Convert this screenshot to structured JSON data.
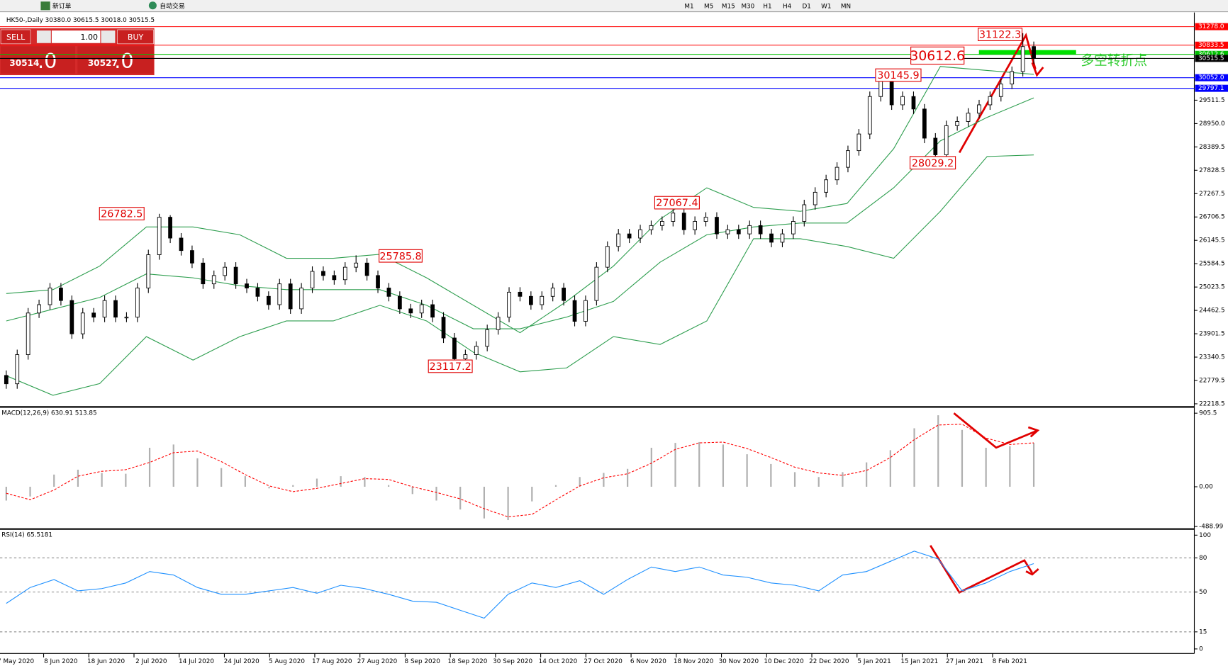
{
  "toolbar": {
    "new_order": "新订单",
    "auto_trade": "自动交易",
    "timeframes": [
      "M1",
      "M5",
      "M15",
      "M30",
      "H1",
      "H4",
      "D1",
      "W1",
      "MN"
    ]
  },
  "trade_panel": {
    "sell": "SELL",
    "lot": "1.00",
    "buy": "BUY",
    "bid": "30514",
    "bid_point": ".0",
    "ask": "30527",
    "ask_point": ".0"
  },
  "time_axis": [
    "7 May 2020",
    "8 Jun 2020",
    "18 Jun 2020",
    "2 Jul 2020",
    "14 Jul 2020",
    "24 Jul 2020",
    "5 Aug 2020",
    "17 Aug 2020",
    "27 Aug 2020",
    "8 Sep 2020",
    "18 Sep 2020",
    "30 Sep 2020",
    "14 Oct 2020",
    "27 Oct 2020",
    "6 Nov 2020",
    "18 Nov 2020",
    "30 Nov 2020",
    "10 Dec 2020",
    "22 Dec 2020",
    "5 Jan 2021",
    "15 Jan 2021",
    "27 Jan 2021",
    "8 Feb 2021"
  ],
  "note": "多空转折点",
  "chart_data": [
    {
      "type": "candlestick",
      "title": "HK50-,Daily 30380.0 30615.5 30018.0 30515.5",
      "open": [
        22900,
        22700,
        23400,
        24400,
        24600,
        25000,
        24700,
        23900,
        24400,
        24300,
        24700,
        24300,
        24300,
        25000,
        25800,
        26700,
        26200,
        25900,
        25600,
        25100,
        25300,
        25500,
        25100,
        25000,
        24800,
        24600,
        25100,
        24500,
        25000,
        25400,
        25300,
        25200,
        25500,
        25600,
        25300,
        25000,
        24800,
        24500,
        24400,
        24600,
        24300,
        23800,
        23300,
        23400,
        23600,
        24000,
        24300,
        24900,
        24800,
        24600,
        24800,
        25000,
        24700,
        24200,
        24700,
        25500,
        26000,
        26300,
        26200,
        26400,
        26500,
        26600,
        26800,
        26400,
        26600,
        26700,
        26300,
        26400,
        26300,
        26500,
        26300,
        26100,
        26300,
        26600,
        27000,
        27300,
        27600,
        27900,
        28300,
        28700,
        29600,
        30000,
        29400,
        29600,
        29300,
        28600,
        28200,
        28900,
        29000,
        29200,
        29400,
        29600,
        29900,
        30200,
        30800
      ],
      "high": [
        23020,
        23520,
        24520,
        24720,
        25120,
        25120,
        24820,
        24520,
        24520,
        24820,
        24820,
        24420,
        25120,
        25920,
        26782.5,
        26750,
        26320,
        26020,
        25720,
        25420,
        25620,
        25620,
        25220,
        25120,
        24920,
        25220,
        25220,
        25120,
        25520,
        25520,
        25420,
        25620,
        25785.8,
        25720,
        25420,
        25120,
        24920,
        24620,
        24720,
        24720,
        24420,
        23920,
        23520,
        23720,
        24120,
        24420,
        25020,
        25020,
        24920,
        24920,
        25120,
        25120,
        24820,
        24820,
        25620,
        26120,
        26420,
        26420,
        26520,
        26620,
        26720,
        27067.4,
        26920,
        26720,
        26820,
        26820,
        26520,
        26520,
        26620,
        26620,
        26420,
        26420,
        26720,
        27120,
        27420,
        27720,
        28020,
        28420,
        28820,
        29720,
        30145.9,
        30120,
        29720,
        29720,
        29420,
        28720,
        29020,
        29120,
        29320,
        29520,
        29720,
        30020,
        30320,
        31122.3,
        30920
      ],
      "low": [
        22580,
        22580,
        23280,
        24280,
        24480,
        24580,
        23780,
        23780,
        24180,
        24180,
        24180,
        24180,
        24180,
        24880,
        25680,
        26080,
        25780,
        25480,
        24980,
        24980,
        25180,
        24980,
        24880,
        24680,
        24480,
        24480,
        24380,
        24380,
        24880,
        25180,
        25080,
        25080,
        25380,
        25180,
        24880,
        24680,
        24380,
        24280,
        24280,
        24180,
        23680,
        23117.2,
        23180,
        23280,
        23480,
        23880,
        24180,
        24680,
        24480,
        24480,
        24680,
        24580,
        24080,
        24080,
        24580,
        25380,
        25880,
        26080,
        26080,
        26280,
        26380,
        26480,
        26280,
        26280,
        26480,
        26180,
        26180,
        26180,
        26180,
        26180,
        25980,
        25980,
        26180,
        26480,
        26880,
        27180,
        27480,
        27780,
        28180,
        28580,
        29480,
        29280,
        29280,
        29180,
        28480,
        28029.2,
        28080,
        28780,
        28880,
        29080,
        29280,
        29480,
        29780,
        30080,
        30380
      ],
      "close": [
        22700,
        23400,
        24400,
        24600,
        25000,
        24700,
        23900,
        24400,
        24300,
        24700,
        24300,
        24300,
        25000,
        25800,
        26700,
        26200,
        25900,
        25600,
        25100,
        25300,
        25500,
        25100,
        25000,
        24800,
        24600,
        25100,
        24500,
        25000,
        25400,
        25300,
        25200,
        25500,
        25600,
        25300,
        25000,
        24800,
        24500,
        24400,
        24600,
        24300,
        23800,
        23300,
        23400,
        23600,
        24000,
        24300,
        24900,
        24800,
        24600,
        24800,
        25000,
        24700,
        24200,
        24700,
        25500,
        26000,
        26300,
        26200,
        26400,
        26500,
        26600,
        26800,
        26400,
        26600,
        26700,
        26300,
        26400,
        26300,
        26500,
        26300,
        26100,
        26300,
        26600,
        27000,
        27300,
        27600,
        27900,
        28300,
        28700,
        29600,
        30000,
        29400,
        29600,
        29300,
        28600,
        28200,
        28900,
        29000,
        29200,
        29400,
        29600,
        29900,
        30200,
        30800,
        30515.5
      ],
      "bands": {
        "color": "#2e9e4f",
        "upper": [
          24868,
          24962,
          25526,
          26466,
          26466,
          26278,
          25714,
          25714,
          25808,
          25244,
          24586,
          23928,
          24680,
          25526,
          26654,
          27406,
          26936,
          26842,
          27030,
          28346,
          30320,
          30226,
          30132
        ],
        "middle": [
          24210,
          24492,
          24774,
          25338,
          25244,
          25056,
          24962,
          24962,
          24962,
          24586,
          24022,
          24022,
          24304,
          24680,
          25620,
          26278,
          26466,
          26560,
          26560,
          27406,
          28534,
          29098,
          29568
        ],
        "lower": [
          22894,
          22424,
          22706,
          23834,
          23270,
          23834,
          24210,
          24210,
          24586,
          24210,
          23458,
          22988,
          23082,
          23834,
          23646,
          24210,
          26184,
          26184,
          25996,
          25714,
          26842,
          28158,
          28196
        ]
      },
      "ylim": [
        22162,
        31580
      ],
      "yticks": [
        29511.5,
        {
          "value": 28950.0,
          "label": "28950.0"
        },
        28389.5,
        27828.5,
        27267.5,
        26706.5,
        26145.5,
        25584.5,
        25023.5,
        24462.5,
        23901.5,
        23340.5,
        22779.5,
        22218.5
      ],
      "price_lines": [
        {
          "value": 31278.0,
          "label": "31278.0",
          "color": "#ff0000"
        },
        {
          "value": 30833.5,
          "label": "30833.5",
          "color": "#ff0000"
        },
        {
          "value": 30612.6,
          "label": "30612.6",
          "color": "#00c000"
        },
        {
          "value": 30515.5,
          "label": "30515.5",
          "color": "#000000"
        },
        {
          "value": 30052.0,
          "label": "30052.0",
          "color": "#0000ff"
        },
        {
          "value": 29797.1,
          "label": "29797.1",
          "color": "#0000ff"
        }
      ],
      "annotations": [
        "31122.3",
        "30612.6",
        "30145.9",
        "28029.2",
        "27067.4",
        "26782.5",
        "25785.8",
        "23117.2"
      ]
    },
    {
      "type": "macd",
      "title": "MACD(12,26,9) 630.91 513.85",
      "color": "#b0b0b0",
      "signal_color": "#ff0000",
      "histogram": [
        -170,
        -120,
        150,
        210,
        170,
        160,
        480,
        520,
        350,
        230,
        130,
        -20,
        20,
        100,
        130,
        120,
        20,
        -90,
        -170,
        -280,
        -390,
        -410,
        -180,
        20,
        120,
        170,
        220,
        480,
        540,
        550,
        520,
        400,
        280,
        180,
        120,
        180,
        300,
        450,
        720,
        880,
        700,
        480,
        500,
        540
      ],
      "signal": [
        -80,
        -160,
        -40,
        130,
        190,
        210,
        300,
        420,
        440,
        310,
        150,
        10,
        -60,
        -20,
        40,
        100,
        90,
        0,
        -70,
        -150,
        -270,
        -370,
        -340,
        -160,
        10,
        110,
        160,
        290,
        460,
        540,
        550,
        470,
        360,
        240,
        170,
        140,
        200,
        360,
        580,
        760,
        770,
        600,
        520,
        540
      ],
      "ylim": [
        -511,
        963
      ],
      "yticks": [
        905.5,
        {
          "value": 0,
          "label": "0.00"
        },
        -488.99
      ]
    },
    {
      "type": "line",
      "title": "RSI(14) 65.5181",
      "color": "#1e90ff",
      "values": [
        40,
        54,
        61,
        51,
        53,
        58,
        68,
        65,
        54,
        48,
        48,
        51,
        54,
        49,
        56,
        53,
        48,
        42,
        41,
        34,
        27,
        48,
        58,
        54,
        60,
        48,
        61,
        72,
        68,
        72,
        65,
        63,
        58,
        56,
        51,
        65,
        68,
        77,
        86,
        79,
        51,
        58,
        68,
        75
      ],
      "ylim": [
        -4,
        104
      ],
      "yticks": [
        100,
        80,
        50,
        15,
        0
      ],
      "grid_levels": [
        80,
        50,
        15
      ]
    }
  ]
}
